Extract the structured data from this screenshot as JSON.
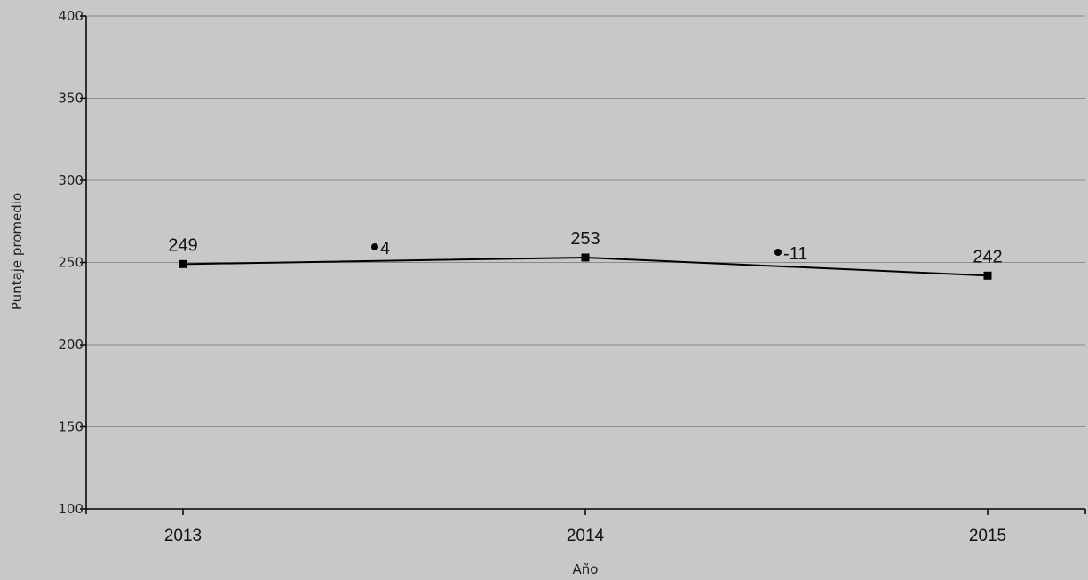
{
  "chart_data": {
    "type": "line",
    "title": "",
    "xlabel": "Año",
    "ylabel": "Puntaje promedio",
    "ylim": [
      100,
      400
    ],
    "yticks": [
      100,
      150,
      200,
      250,
      300,
      350,
      400
    ],
    "grid": "horizontal",
    "categories": [
      "2013",
      "2014",
      "2015"
    ],
    "series": [
      {
        "values": [
          249,
          253,
          242
        ],
        "labels": [
          "249",
          "253",
          "242"
        ],
        "marker": "square"
      }
    ],
    "differences": [
      {
        "between": [
          "2013",
          "2014"
        ],
        "label": "4"
      },
      {
        "between": [
          "2014",
          "2015"
        ],
        "label": "-11"
      }
    ],
    "colors": {
      "background": "#c8c8c8",
      "line": "#000000",
      "gridline": "#8a8a8a",
      "axis": "#000000"
    }
  }
}
